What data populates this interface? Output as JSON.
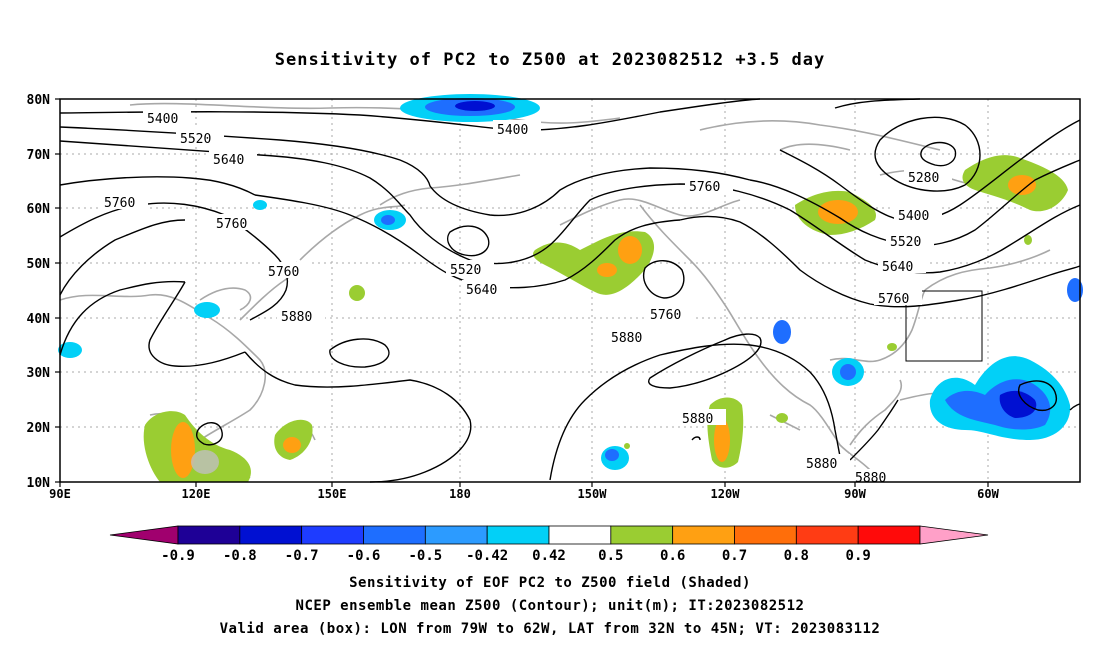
{
  "title": "Sensitivity of PC2 to Z500 at 2023082512 +3.5 day",
  "map": {
    "lat_labels": [
      "80N",
      "70N",
      "60N",
      "50N",
      "40N",
      "30N",
      "20N",
      "10N"
    ],
    "lon_labels": [
      "90E",
      "120E",
      "150E",
      "180",
      "150W",
      "120W",
      "90W",
      "60W"
    ],
    "contour_labels": [
      "5400",
      "5520",
      "5640",
      "5760",
      "5760",
      "5760",
      "5880",
      "5400",
      "5520",
      "5640",
      "5760",
      "5760",
      "5880",
      "5880",
      "5880",
      "5880",
      "5280",
      "5400",
      "5520",
      "5640",
      "5760"
    ],
    "valid_box": {
      "lon_from": "79W",
      "lon_to": "62W",
      "lat_from": "32N",
      "lat_to": "45N"
    }
  },
  "colorbar": {
    "labels": [
      "-0.9",
      "-0.8",
      "-0.7",
      "-0.6",
      "-0.5",
      "-0.42",
      "0.42",
      "0.5",
      "0.6",
      "0.7",
      "0.8",
      "0.9"
    ],
    "colors": [
      "#a0006e",
      "#1e0096",
      "#0010d2",
      "#1e3cff",
      "#1e6eff",
      "#2c9bff",
      "#02d0f7",
      "#ffffff",
      "#9acd32",
      "#ffa012",
      "#ff6e0a",
      "#ff3c14",
      "#ff0a0a",
      "#ffa0c8"
    ]
  },
  "captions": {
    "line1": "Sensitivity of EOF PC2 to Z500 field (Shaded)",
    "line2": "NCEP ensemble mean Z500 (Contour); unit(m); IT:2023082512",
    "line3": "Valid area (box): LON from 79W to 62W, LAT from 32N to 45N; VT: 2023083112"
  }
}
